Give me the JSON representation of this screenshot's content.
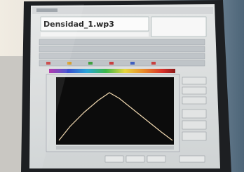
{
  "window": {
    "file_name": "Densidad_1.wp3"
  }
}
